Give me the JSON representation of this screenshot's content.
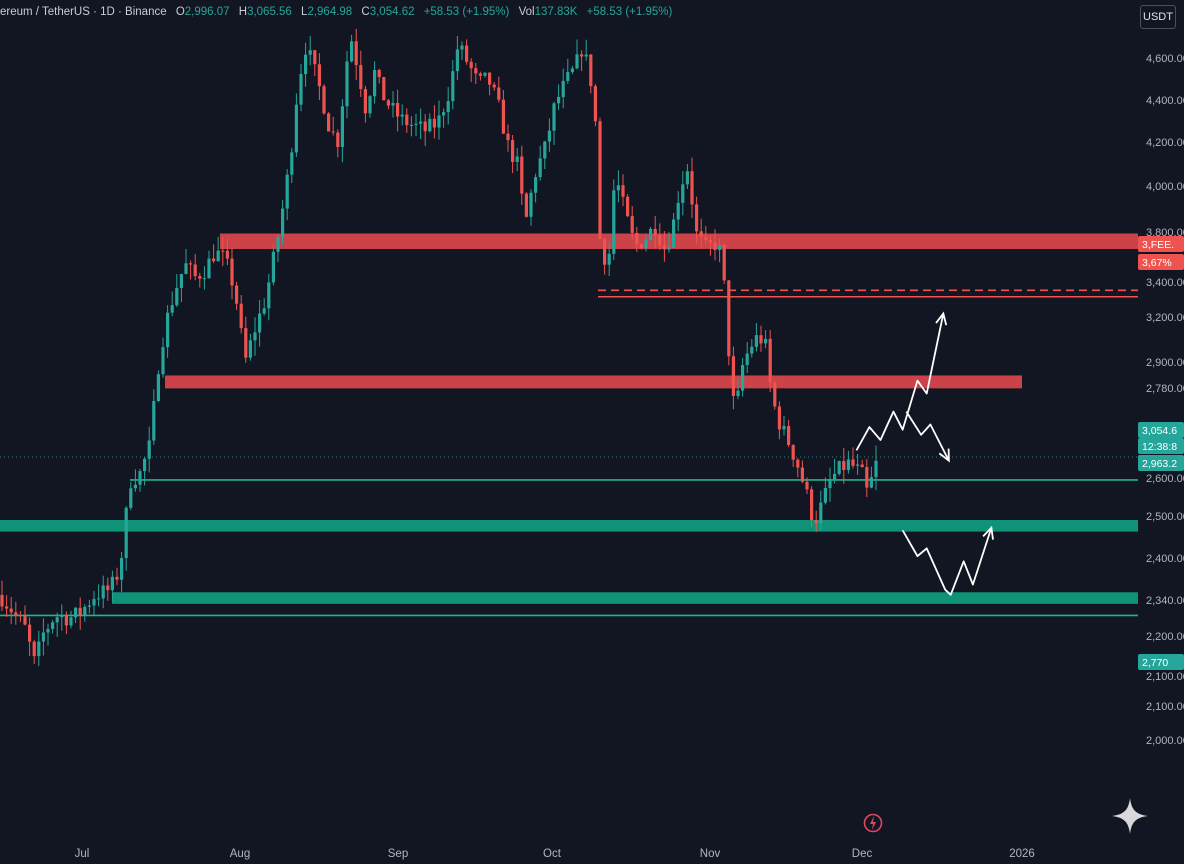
{
  "header": {
    "symbol": "ereum / TetherUS · 1D · Binance",
    "o_label": "O",
    "o_value": "2,996.07",
    "h_label": "H",
    "h_value": "3,065.56",
    "l_label": "L",
    "l_value": "2,964.98",
    "c_label": "C",
    "c_value": "3,054.62",
    "change": "+58.53 (+1.95%)",
    "vol_label": "Vol",
    "vol_value": "137.83K",
    "vol_change": "+58.53 (+1.95%)"
  },
  "currency_button": "USDT",
  "colors": {
    "background": "#121622",
    "up": "#26a69a",
    "down": "#ef5350",
    "resistance_zone": "#e0474c",
    "support_zone": "#0f9d80",
    "support_line": "#1fb58f",
    "axis_text": "#b2b5be",
    "arrows": "#ffffff"
  },
  "icons": [
    "replay-icon",
    "sparkle-icon"
  ],
  "chart_data": {
    "type": "candlestick",
    "x_labels": [
      "Jul",
      "Aug",
      "Sep",
      "Oct",
      "Nov",
      "Dec",
      "2026"
    ],
    "y_tick_labels": [
      "4,600.00",
      "4,400.00",
      "4,200.00",
      "4,000.00",
      "3,800.00",
      "3,400.00",
      "3,200.00",
      "2,900.00",
      "2,780.00",
      "2,600.00",
      "2,500.00",
      "2,400.00",
      "2,340.00",
      "2,200.00",
      "2,100.00",
      "2,100.00",
      "2,000.00"
    ],
    "price_labels": [
      {
        "text": "3,FEE.",
        "color": "#ef5350"
      },
      {
        "text": "3,67% ",
        "color": "#ef5350"
      },
      {
        "text": "3,054.6",
        "color": "#26a69a"
      },
      {
        "text": "12:38:8",
        "color": "#26a69a"
      },
      {
        "text": "2,963.2",
        "color": "#26a69a"
      },
      {
        "text": "2,770",
        "color": "#26a69a"
      }
    ],
    "resistance_zones": [
      {
        "low": 3860,
        "high": 3920
      },
      {
        "low": 3320,
        "high": 3370
      }
    ],
    "support_zones": [
      {
        "low": 2765,
        "high": 2810
      },
      {
        "low": 2485,
        "high": 2530
      }
    ],
    "horizontal_lines": [
      {
        "price": 3675,
        "color": "#ef5350",
        "style": "solid"
      },
      {
        "price": 3700,
        "color": "#ef5350",
        "style": "dashed"
      },
      {
        "price": 2965,
        "color": "#1fb58f",
        "style": "solid"
      },
      {
        "price": 2440,
        "color": "#1fb58f",
        "style": "solid"
      }
    ],
    "scenario_paths": [
      {
        "type": "bullish",
        "points": [
          [
            2025.915,
            3080
          ],
          [
            2025.922,
            3170
          ],
          [
            2025.928,
            3120
          ],
          [
            2025.935,
            3230
          ],
          [
            2025.94,
            3160
          ],
          [
            2025.948,
            3350
          ],
          [
            2025.953,
            3300
          ],
          [
            2025.962,
            3610
          ]
        ]
      },
      {
        "type": "bearish_top",
        "points": [
          [
            2025.942,
            3230
          ],
          [
            2025.95,
            3140
          ],
          [
            2025.955,
            3180
          ],
          [
            2025.965,
            3040
          ]
        ]
      },
      {
        "type": "bearish_bottom",
        "points": [
          [
            2025.94,
            2770
          ],
          [
            2025.948,
            2670
          ],
          [
            2025.953,
            2700
          ],
          [
            2025.963,
            2540
          ],
          [
            2025.966,
            2520
          ],
          [
            2025.973,
            2650
          ],
          [
            2025.978,
            2560
          ],
          [
            2025.988,
            2780
          ]
        ]
      }
    ]
  }
}
